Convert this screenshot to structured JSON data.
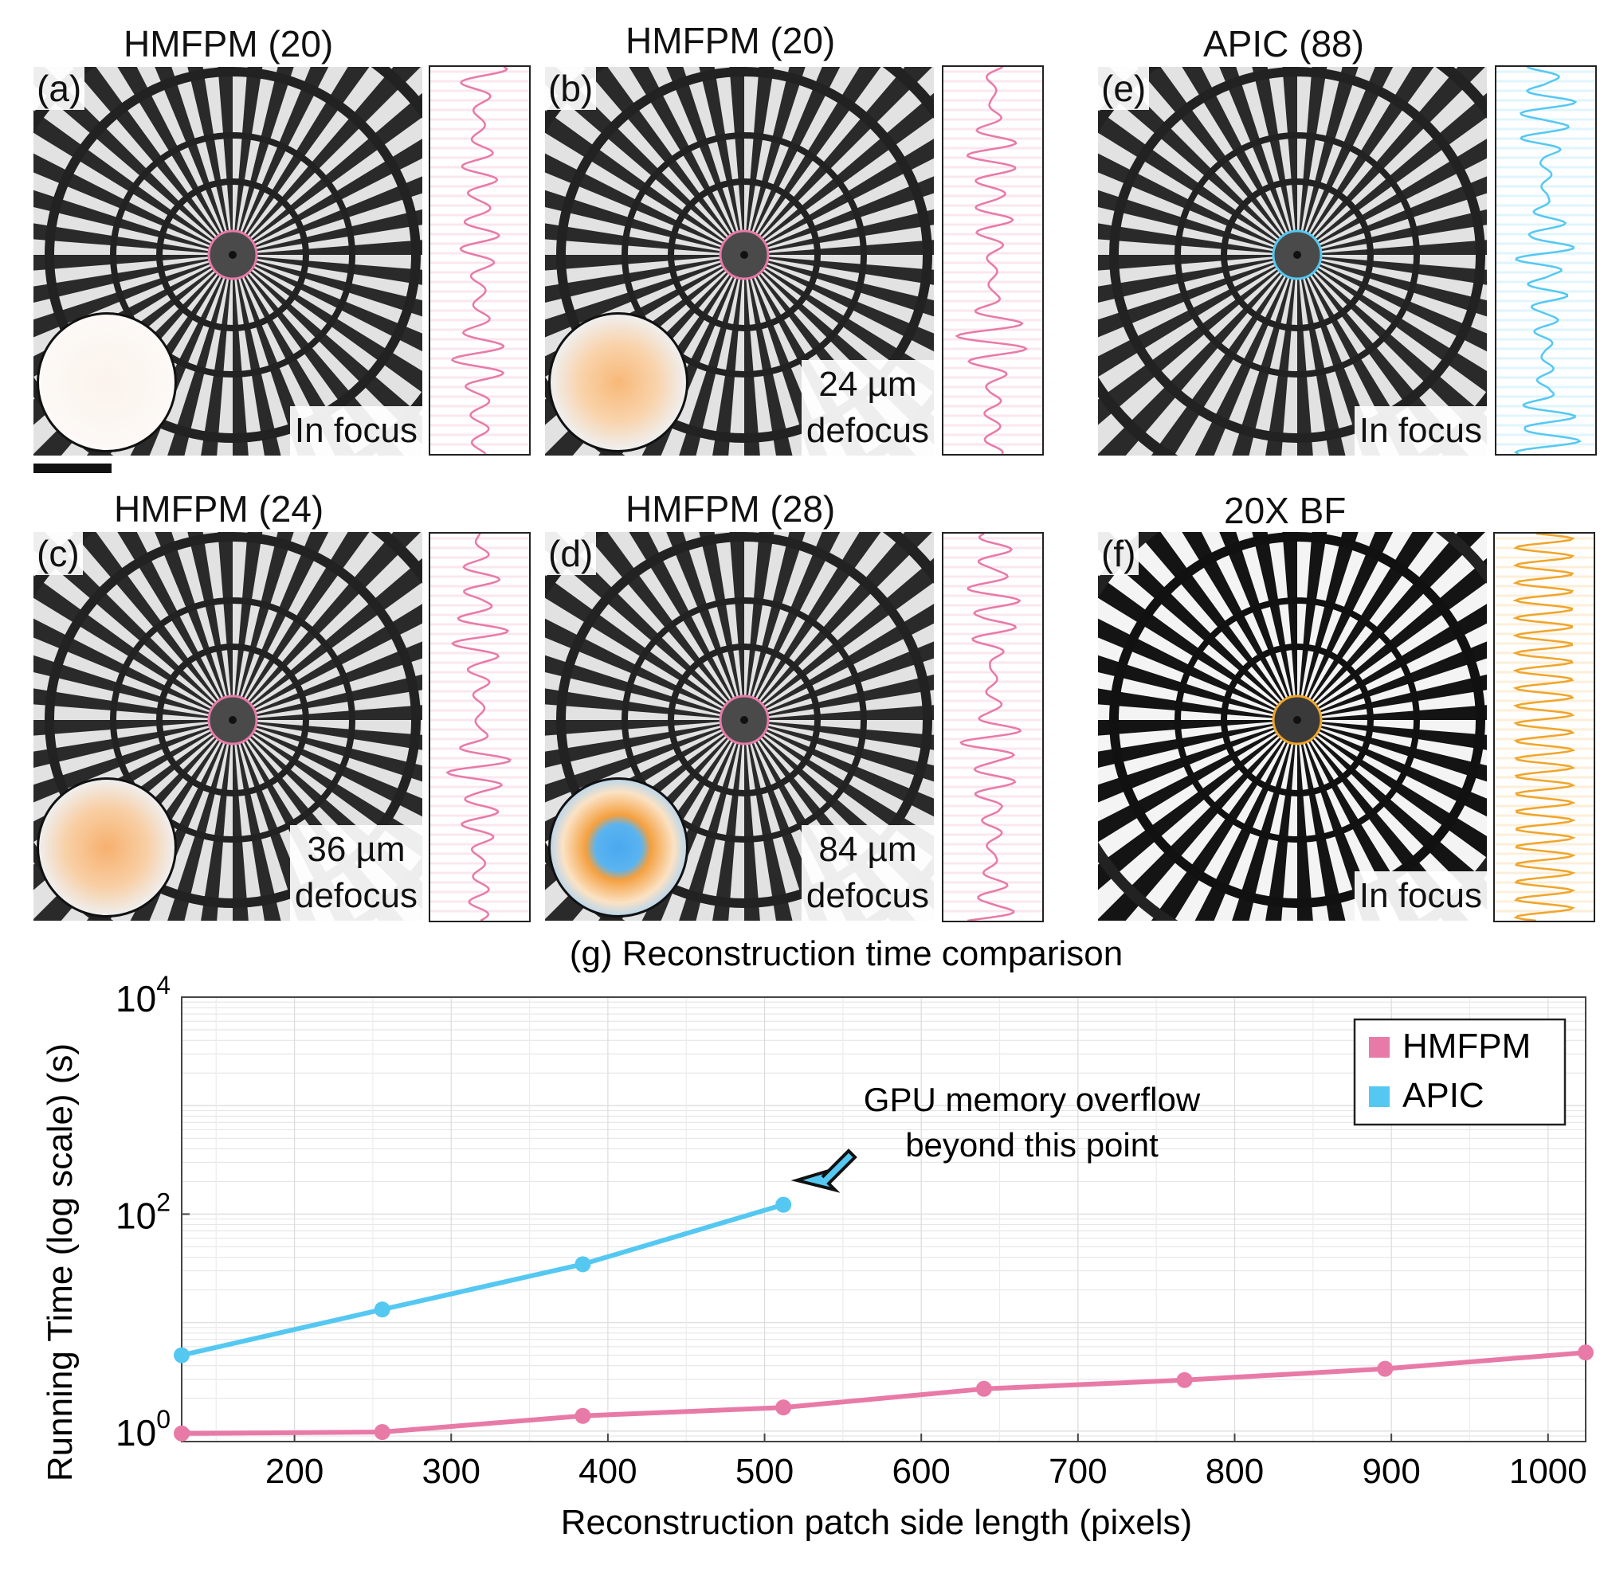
{
  "panels": [
    {
      "id": "a",
      "letter": "(a)",
      "title": "HMFPM (20)",
      "note_line1": "In focus",
      "note_line2": "",
      "accent": "#e07aa3",
      "pupil": "flat"
    },
    {
      "id": "b",
      "letter": "(b)",
      "title": "HMFPM (20)",
      "note_line1": "24 µm",
      "note_line2": "defocus",
      "accent": "#e07aa3",
      "pupil": "soft"
    },
    {
      "id": "c",
      "letter": "(c)",
      "title": "HMFPM (24)",
      "note_line1": "36 µm",
      "note_line2": "defocus",
      "accent": "#e07aa3",
      "pupil": "soft"
    },
    {
      "id": "d",
      "letter": "(d)",
      "title": "HMFPM (28)",
      "note_line1": "84 µm",
      "note_line2": "defocus",
      "accent": "#e07aa3",
      "pupil": "ring"
    },
    {
      "id": "e",
      "letter": "(e)",
      "title": "APIC (88)",
      "note_line1": "In focus",
      "note_line2": "",
      "accent": "#4fc3ef",
      "pupil": "none"
    },
    {
      "id": "f",
      "letter": "(f)",
      "title": "20X BF",
      "note_line1": "In focus",
      "note_line2": "",
      "accent": "#f0a020",
      "pupil": "none"
    }
  ],
  "colors": {
    "hmfpm": "#e87aa8",
    "apic": "#55c8f2",
    "bf": "#f0a52a"
  },
  "chart_data": {
    "type": "line",
    "title": "(g) Reconstruction time comparison",
    "xlabel": "Reconstruction patch side length (pixels)",
    "ylabel": "Running Time (log scale) (s)",
    "yscale": "log",
    "xlim": [
      128,
      1024
    ],
    "ylim": [
      0.8,
      10000
    ],
    "xticks": [
      200,
      300,
      400,
      500,
      600,
      700,
      800,
      900,
      1000
    ],
    "yticks": [
      {
        "value": 1,
        "base": "10",
        "exp": "0"
      },
      {
        "value": 100,
        "base": "10",
        "exp": "2"
      },
      {
        "value": 10000,
        "base": "10",
        "exp": "4"
      }
    ],
    "grid": true,
    "legend_position": "top-right",
    "series": [
      {
        "name": "HMFPM",
        "color": "#e87aa8",
        "x": [
          128,
          256,
          384,
          512,
          640,
          768,
          896,
          1024
        ],
        "y": [
          0.95,
          0.98,
          1.38,
          1.65,
          2.45,
          2.95,
          3.75,
          5.3
        ]
      },
      {
        "name": "APIC",
        "color": "#55c8f2",
        "x": [
          128,
          256,
          384,
          512
        ],
        "y": [
          5.0,
          13.2,
          34.5,
          122
        ]
      }
    ],
    "annotation": {
      "line1": "GPU memory overflow",
      "line2": "beyond this point",
      "x": 512,
      "y": 122
    }
  }
}
